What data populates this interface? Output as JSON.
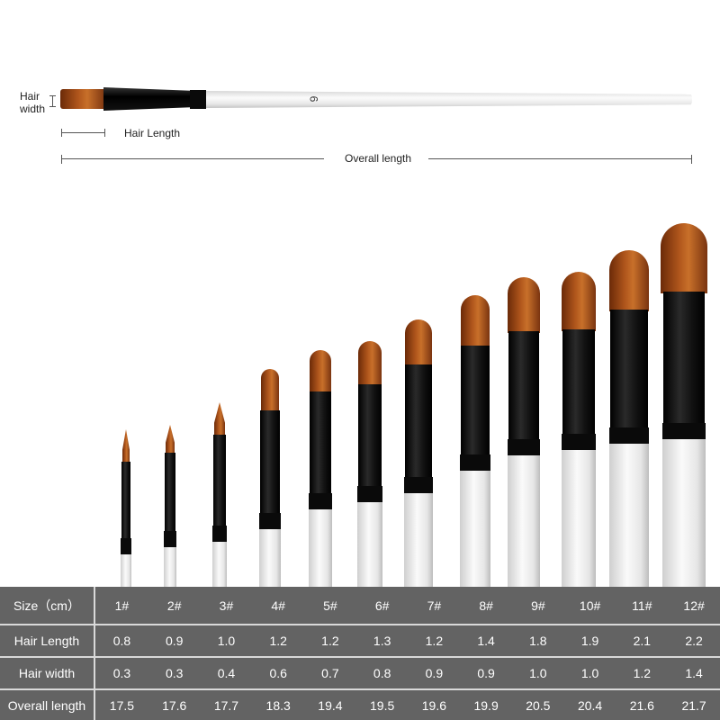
{
  "diagram": {
    "hair_width_label": "Hair width",
    "hair_length_label": "Hair Length",
    "overall_length_label": "Overall length",
    "handle_number": "6"
  },
  "colors": {
    "table_bg": "#636363",
    "bristle": "#b0561c",
    "ferrule": "#111111",
    "handle": "#f2f2f2"
  },
  "table": {
    "rows": [
      {
        "label": "Size（cm）",
        "values": [
          "1#",
          "2#",
          "3#",
          "4#",
          "5#",
          "6#",
          "7#",
          "8#",
          "9#",
          "10#",
          "11#",
          "12#"
        ]
      },
      {
        "label": "Hair Length",
        "values": [
          "0.8",
          "0.9",
          "1.0",
          "1.2",
          "1.2",
          "1.3",
          "1.2",
          "1.4",
          "1.8",
          "1.9",
          "2.1",
          "2.2"
        ]
      },
      {
        "label": "Hair width",
        "values": [
          "0.3",
          "0.3",
          "0.4",
          "0.6",
          "0.7",
          "0.8",
          "0.9",
          "0.9",
          "1.0",
          "1.0",
          "1.2",
          "1.4"
        ]
      },
      {
        "label": "Overall length",
        "values": [
          "17.5",
          "17.6",
          "17.7",
          "18.3",
          "19.4",
          "19.5",
          "19.6",
          "19.9",
          "20.5",
          "20.4",
          "21.6",
          "21.7"
        ]
      }
    ]
  }
}
